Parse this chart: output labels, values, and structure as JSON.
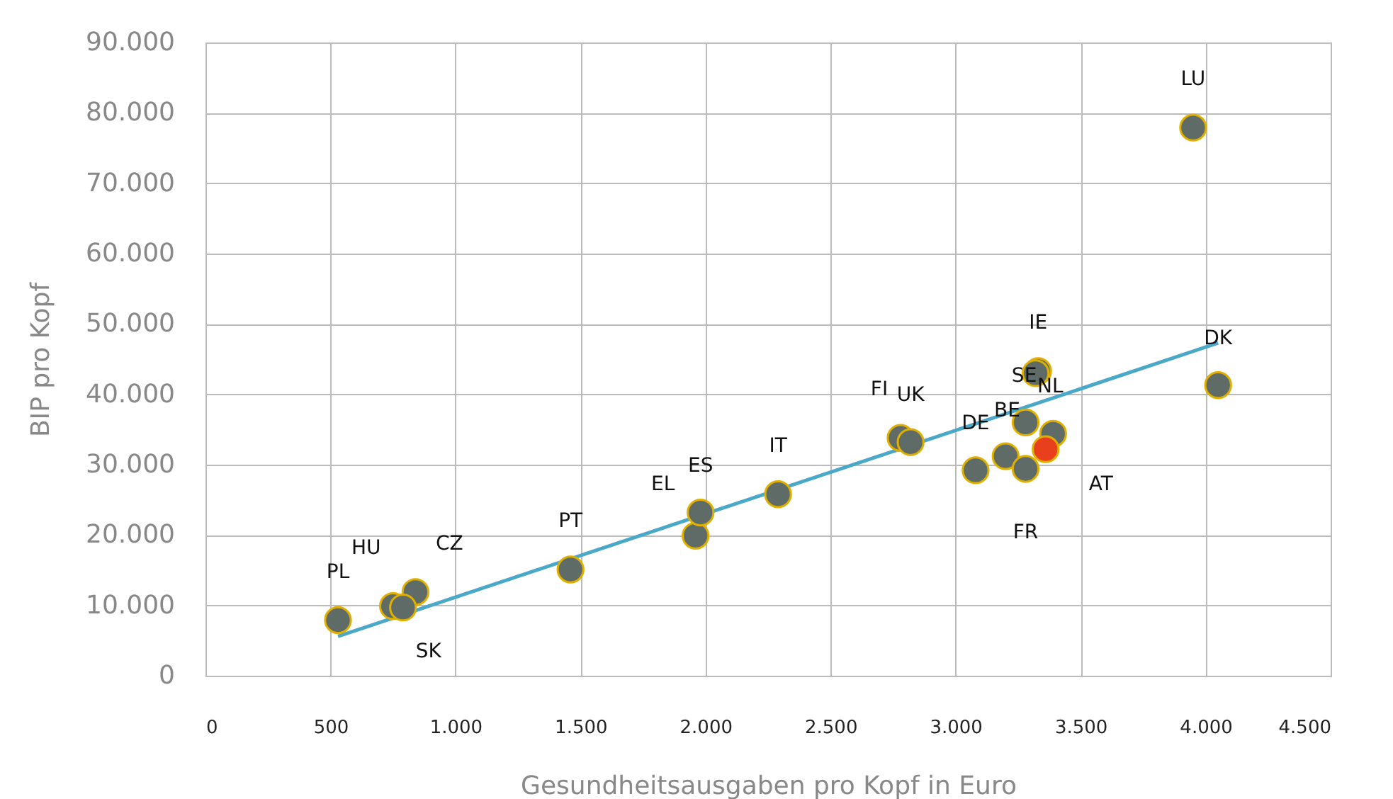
{
  "chart_data": {
    "type": "scatter",
    "xlabel": "Gesundheitsausgaben pro Kopf in Euro",
    "ylabel": "BIP pro Kopf",
    "xlim": [
      0,
      4500
    ],
    "ylim": [
      0,
      90000
    ],
    "xticks": [
      0,
      500,
      {
        "value": 1000,
        "label": "1.000"
      },
      {
        "value": 1500,
        "label": "1.500"
      },
      {
        "value": 2000,
        "label": "2.000"
      },
      {
        "value": 2500,
        "label": "2.500"
      },
      {
        "value": 3000,
        "label": "3.000"
      },
      {
        "value": 3500,
        "label": "3.500"
      },
      {
        "value": 4000,
        "label": "4.000"
      },
      {
        "value": 4500,
        "label": "4.500"
      }
    ],
    "yticks": [
      0,
      {
        "value": 10000,
        "label": "10.000"
      },
      {
        "value": 20000,
        "label": "20.000"
      },
      {
        "value": 30000,
        "label": "30.000"
      },
      {
        "value": 40000,
        "label": "40.000"
      },
      {
        "value": 50000,
        "label": "50.000"
      },
      {
        "value": 60000,
        "label": "60.000"
      },
      {
        "value": 70000,
        "label": "70.000"
      },
      {
        "value": 80000,
        "label": "80.000"
      },
      {
        "value": 90000,
        "label": "90.000"
      }
    ],
    "grid": true,
    "series": [
      {
        "marker": "circle",
        "x": [
          530,
          750,
          840,
          790,
          1460,
          1960,
          1980,
          2290,
          2780,
          2820,
          3080,
          3200,
          3280,
          3280,
          3330,
          3320,
          3390,
          3360,
          3950,
          4050
        ],
        "values": [
          7900,
          9900,
          11900,
          9700,
          15100,
          19900,
          23200,
          25800,
          33800,
          33200,
          29200,
          31200,
          29400,
          36000,
          43300,
          43000,
          34400,
          32200,
          77900,
          41300
        ],
        "value_labels": [
          "PL",
          "HU",
          "CZ",
          "SK",
          "PT",
          "EL",
          "ES",
          "IT",
          "FI",
          "UK",
          "DE",
          null,
          "FR",
          "BE",
          "IE",
          "SE",
          "NL",
          "AT",
          "LU",
          "DK"
        ],
        "colors": [
          "#5f6b66",
          "#5f6b66",
          "#5f6b66",
          "#5f6b66",
          "#5f6b66",
          "#5f6b66",
          "#5f6b66",
          "#5f6b66",
          "#5f6b66",
          "#5f6b66",
          "#5f6b66",
          "#5f6b66",
          "#5f6b66",
          "#5f6b66",
          "#5f6b66",
          "#5f6b66",
          "#5f6b66",
          "#e8401c",
          "#5f6b66",
          "#5f6b66"
        ]
      },
      {
        "type": "line",
        "color": "#4ba8c8",
        "x": [
          530,
          4050
        ],
        "values": [
          5600,
          47300
        ]
      }
    ]
  }
}
